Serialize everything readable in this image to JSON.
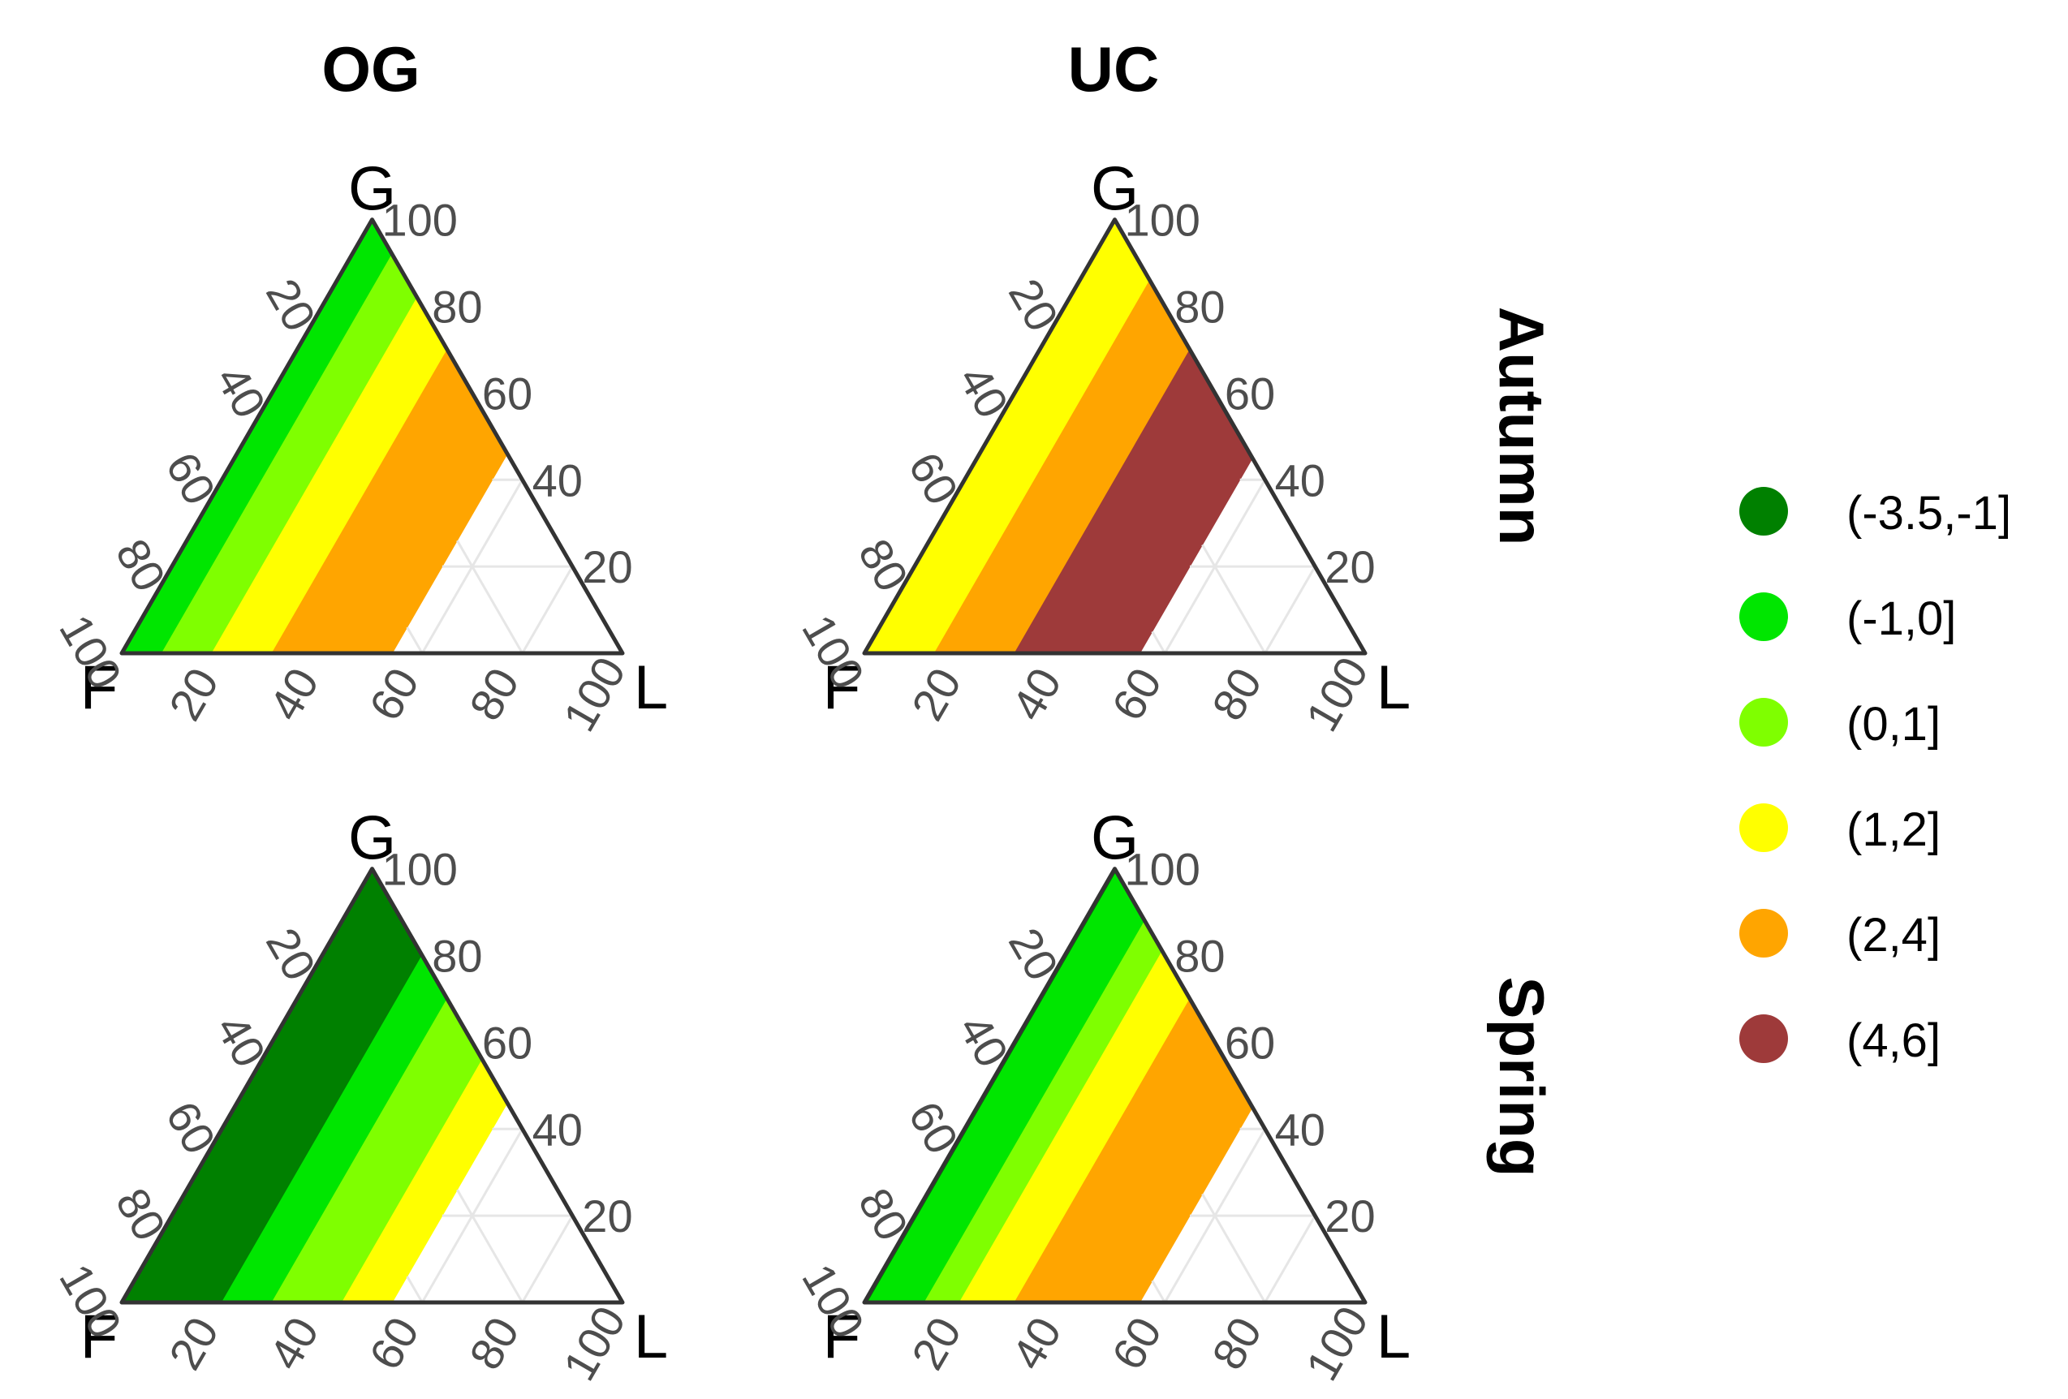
{
  "chart_data": {
    "type": "ternary",
    "columns": [
      "OG",
      "UC"
    ],
    "rows": [
      "Autumn",
      "Spring"
    ],
    "vertex_labels": {
      "top": "G",
      "left": "F",
      "right": "L"
    },
    "ticks": [
      20,
      40,
      60,
      80,
      100
    ],
    "right_axis_ticks": [
      20,
      40,
      60,
      80,
      100
    ],
    "legend": {
      "title": "",
      "items": [
        {
          "label": "(-3.5,-1]",
          "color": "#008000"
        },
        {
          "label": "(-1,0]",
          "color": "#00E600"
        },
        {
          "label": "(0,1]",
          "color": "#7FFF00"
        },
        {
          "label": "(1,2]",
          "color": "#FFFF00"
        },
        {
          "label": "(2,4]",
          "color": "#FFA500"
        },
        {
          "label": "(4,6]",
          "color": "#9E3A3A"
        }
      ]
    },
    "panels": [
      {
        "column": "OG",
        "row": "Autumn",
        "bands": [
          {
            "class": 0,
            "lmax": 0.5
          },
          {
            "class": 1,
            "lmax": 8
          },
          {
            "class": 2,
            "lmax": 18
          },
          {
            "class": 3,
            "lmax": 30
          },
          {
            "class": 4,
            "lmax": 54
          }
        ],
        "blank_above": 54
      },
      {
        "column": "UC",
        "row": "Autumn",
        "bands": [
          {
            "class": 3,
            "lmax": 14
          },
          {
            "class": 4,
            "lmax": 30
          },
          {
            "class": 5,
            "lmax": 55
          }
        ],
        "blank_above": 55
      },
      {
        "column": "OG",
        "row": "Spring",
        "bands": [
          {
            "class": 0,
            "lmax": 20
          },
          {
            "class": 1,
            "lmax": 30
          },
          {
            "class": 2,
            "lmax": 44
          },
          {
            "class": 3,
            "lmax": 54
          }
        ],
        "blank_above": 54
      },
      {
        "column": "UC",
        "row": "Spring",
        "bands": [
          {
            "class": 0,
            "lmax": 0.7
          },
          {
            "class": 1,
            "lmax": 12
          },
          {
            "class": 2,
            "lmax": 19
          },
          {
            "class": 3,
            "lmax": 30
          },
          {
            "class": 4,
            "lmax": 55
          }
        ],
        "blank_above": 55
      }
    ]
  }
}
